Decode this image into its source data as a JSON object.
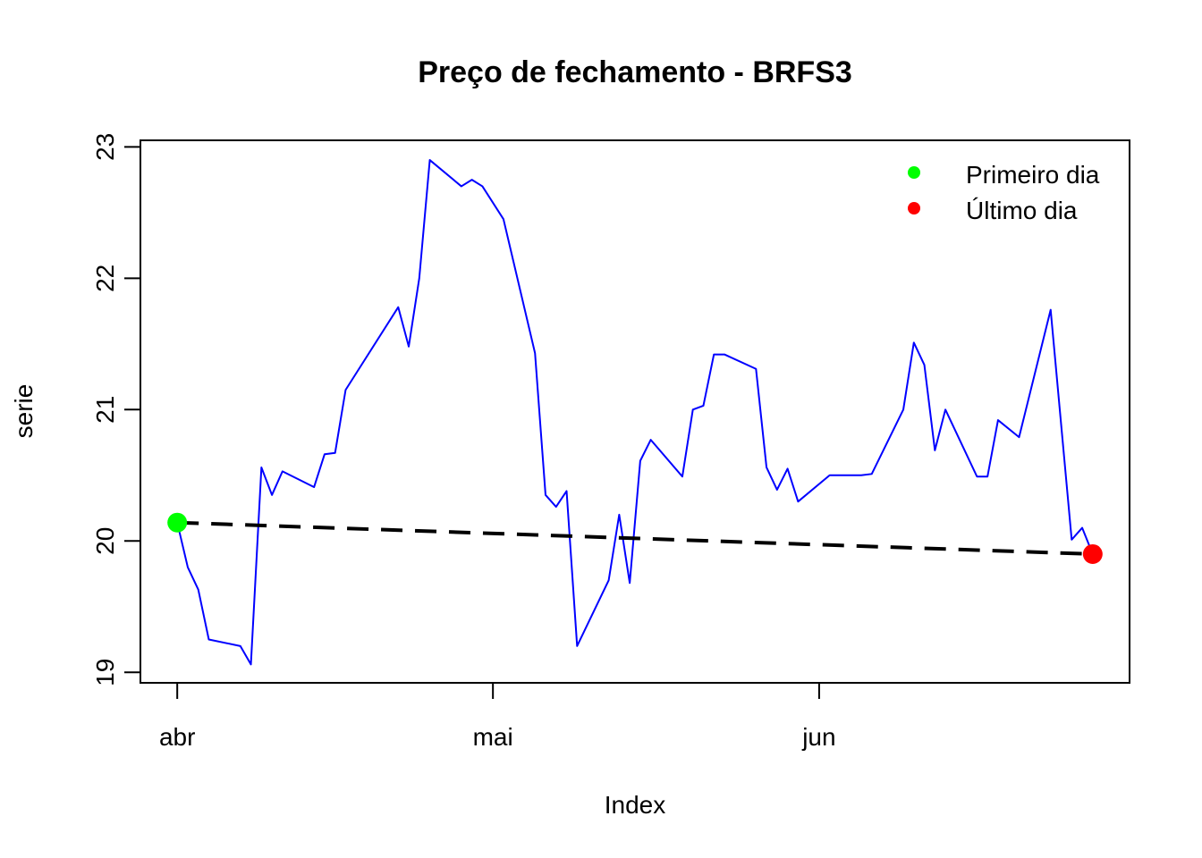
{
  "chart_data": {
    "type": "line",
    "title": "Preço de fechamento - BRFS3",
    "xlabel": "Index",
    "ylabel": "serie",
    "x_ticks": [
      {
        "label": "abr",
        "x": 0
      },
      {
        "label": "mai",
        "x": 30
      },
      {
        "label": "jun",
        "x": 61
      }
    ],
    "y_ticks": [
      "19",
      "20",
      "21",
      "22",
      "23"
    ],
    "ylim": [
      18.92,
      23.05
    ],
    "xlim": [
      -3.5,
      90.5
    ],
    "series": [
      {
        "line_color": "#0000FF",
        "points": [
          [
            0,
            20.14
          ],
          [
            1,
            19.8
          ],
          [
            2,
            19.63
          ],
          [
            3,
            19.25
          ],
          [
            6,
            19.2
          ],
          [
            7,
            19.06
          ],
          [
            8,
            20.56
          ],
          [
            9,
            20.35
          ],
          [
            10,
            20.53
          ],
          [
            13,
            20.41
          ],
          [
            14,
            20.66
          ],
          [
            15,
            20.67
          ],
          [
            16,
            21.15
          ],
          [
            21,
            21.78
          ],
          [
            22,
            21.48
          ],
          [
            23,
            22.0
          ],
          [
            24,
            22.9
          ],
          [
            27,
            22.7
          ],
          [
            28,
            22.75
          ],
          [
            29,
            22.7
          ],
          [
            31,
            22.45
          ],
          [
            34,
            21.43
          ],
          [
            35,
            20.35
          ],
          [
            36,
            20.26
          ],
          [
            37,
            20.38
          ],
          [
            38,
            19.2
          ],
          [
            41,
            19.7
          ],
          [
            42,
            20.2
          ],
          [
            43,
            19.68
          ],
          [
            44,
            20.61
          ],
          [
            45,
            20.77
          ],
          [
            48,
            20.49
          ],
          [
            49,
            21.0
          ],
          [
            50,
            21.03
          ],
          [
            51,
            21.42
          ],
          [
            52,
            21.42
          ],
          [
            55,
            21.31
          ],
          [
            56,
            20.56
          ],
          [
            57,
            20.39
          ],
          [
            58,
            20.55
          ],
          [
            59,
            20.3
          ],
          [
            62,
            20.5
          ],
          [
            65,
            20.5
          ],
          [
            66,
            20.51
          ],
          [
            69,
            21.0
          ],
          [
            70,
            21.51
          ],
          [
            71,
            21.34
          ],
          [
            72,
            20.69
          ],
          [
            73,
            21.0
          ],
          [
            76,
            20.49
          ],
          [
            77,
            20.49
          ],
          [
            78,
            20.92
          ],
          [
            80,
            20.79
          ],
          [
            83,
            21.76
          ],
          [
            85,
            20.01
          ],
          [
            86,
            20.1
          ],
          [
            87,
            19.9
          ]
        ]
      }
    ],
    "trend_line": {
      "from": [
        0,
        20.14
      ],
      "to": [
        87,
        19.9
      ],
      "color": "#000000",
      "style": "dashed"
    },
    "markers": [
      {
        "x": 0,
        "y": 20.14,
        "color": "#00FF00"
      },
      {
        "x": 87,
        "y": 19.9,
        "color": "#FF0000"
      }
    ],
    "legend": {
      "position": "top-right",
      "entries": [
        {
          "label": "Primeiro dia",
          "color": "#00FF00"
        },
        {
          "label": "Último dia",
          "color": "#FF0000"
        }
      ]
    },
    "grid": false
  }
}
